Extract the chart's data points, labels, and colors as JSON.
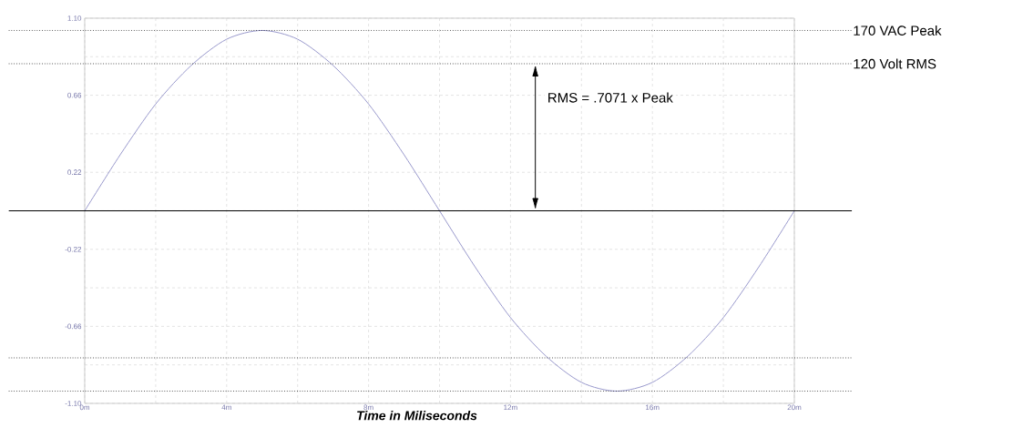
{
  "chart_data": {
    "type": "line",
    "xlabel": "Time in Miliseconds",
    "x": [
      0,
      1,
      2,
      3,
      4,
      5,
      6,
      7,
      8,
      9,
      10,
      11,
      12,
      13,
      14,
      15,
      16,
      17,
      18,
      19,
      20
    ],
    "series": [
      {
        "color": "#9999cc",
        "values": [
          0,
          0.32,
          0.61,
          0.83,
          0.98,
          1.03,
          0.98,
          0.83,
          0.61,
          0.32,
          0,
          -0.32,
          -0.61,
          -0.83,
          -0.98,
          -1.03,
          -0.98,
          -0.83,
          -0.61,
          -0.32,
          0
        ]
      }
    ],
    "xlim": [
      0,
      20
    ],
    "xticks": [
      {
        "value": 0,
        "label": "0m"
      },
      {
        "value": 2,
        "label": null
      },
      {
        "value": 4,
        "label": "4m"
      },
      {
        "value": 6,
        "label": null
      },
      {
        "value": 8,
        "label": "8m"
      },
      {
        "value": 10,
        "label": null
      },
      {
        "value": 12,
        "label": "12m"
      },
      {
        "value": 14,
        "label": null
      },
      {
        "value": 16,
        "label": "16m"
      },
      {
        "value": 18,
        "label": null
      },
      {
        "value": 20,
        "label": "20m"
      }
    ],
    "ylim": [
      -1.1,
      1.1
    ],
    "yticks": [
      {
        "value": 1.1,
        "label": "1.10"
      },
      {
        "value": 0.88,
        "label": null
      },
      {
        "value": 0.66,
        "label": "0.66"
      },
      {
        "value": 0.44,
        "label": null
      },
      {
        "value": 0.22,
        "label": "0.22"
      },
      {
        "value": 0,
        "label": null
      },
      {
        "value": -0.22,
        "label": "-0.22"
      },
      {
        "value": -0.44,
        "label": null
      },
      {
        "value": -0.66,
        "label": "-0.66"
      },
      {
        "value": -0.88,
        "label": null
      },
      {
        "value": -1.1,
        "label": "-1.10"
      }
    ],
    "grid": true,
    "marker": "none",
    "line_style": "solid",
    "ref_lines": [
      {
        "axis": "y",
        "value": 1.03,
        "label": "170 VAC Peak",
        "color": "#000000",
        "line_style": "dotted"
      },
      {
        "axis": "y",
        "value": 0.84,
        "label": "120 Volt RMS",
        "color": "#000000",
        "line_style": "dotted"
      },
      {
        "axis": "y",
        "value": 0,
        "label": null,
        "color": "#000000",
        "line_style": "solid"
      },
      {
        "axis": "y",
        "value": -0.84,
        "label": null,
        "color": "#000000",
        "line_style": "dotted"
      },
      {
        "axis": "y",
        "value": -1.03,
        "label": null,
        "color": "#000000",
        "line_style": "dotted"
      }
    ],
    "annotations": [
      {
        "text": "RMS = .7071 x Peak",
        "x": 12.7,
        "y": 0.84
      }
    ]
  }
}
